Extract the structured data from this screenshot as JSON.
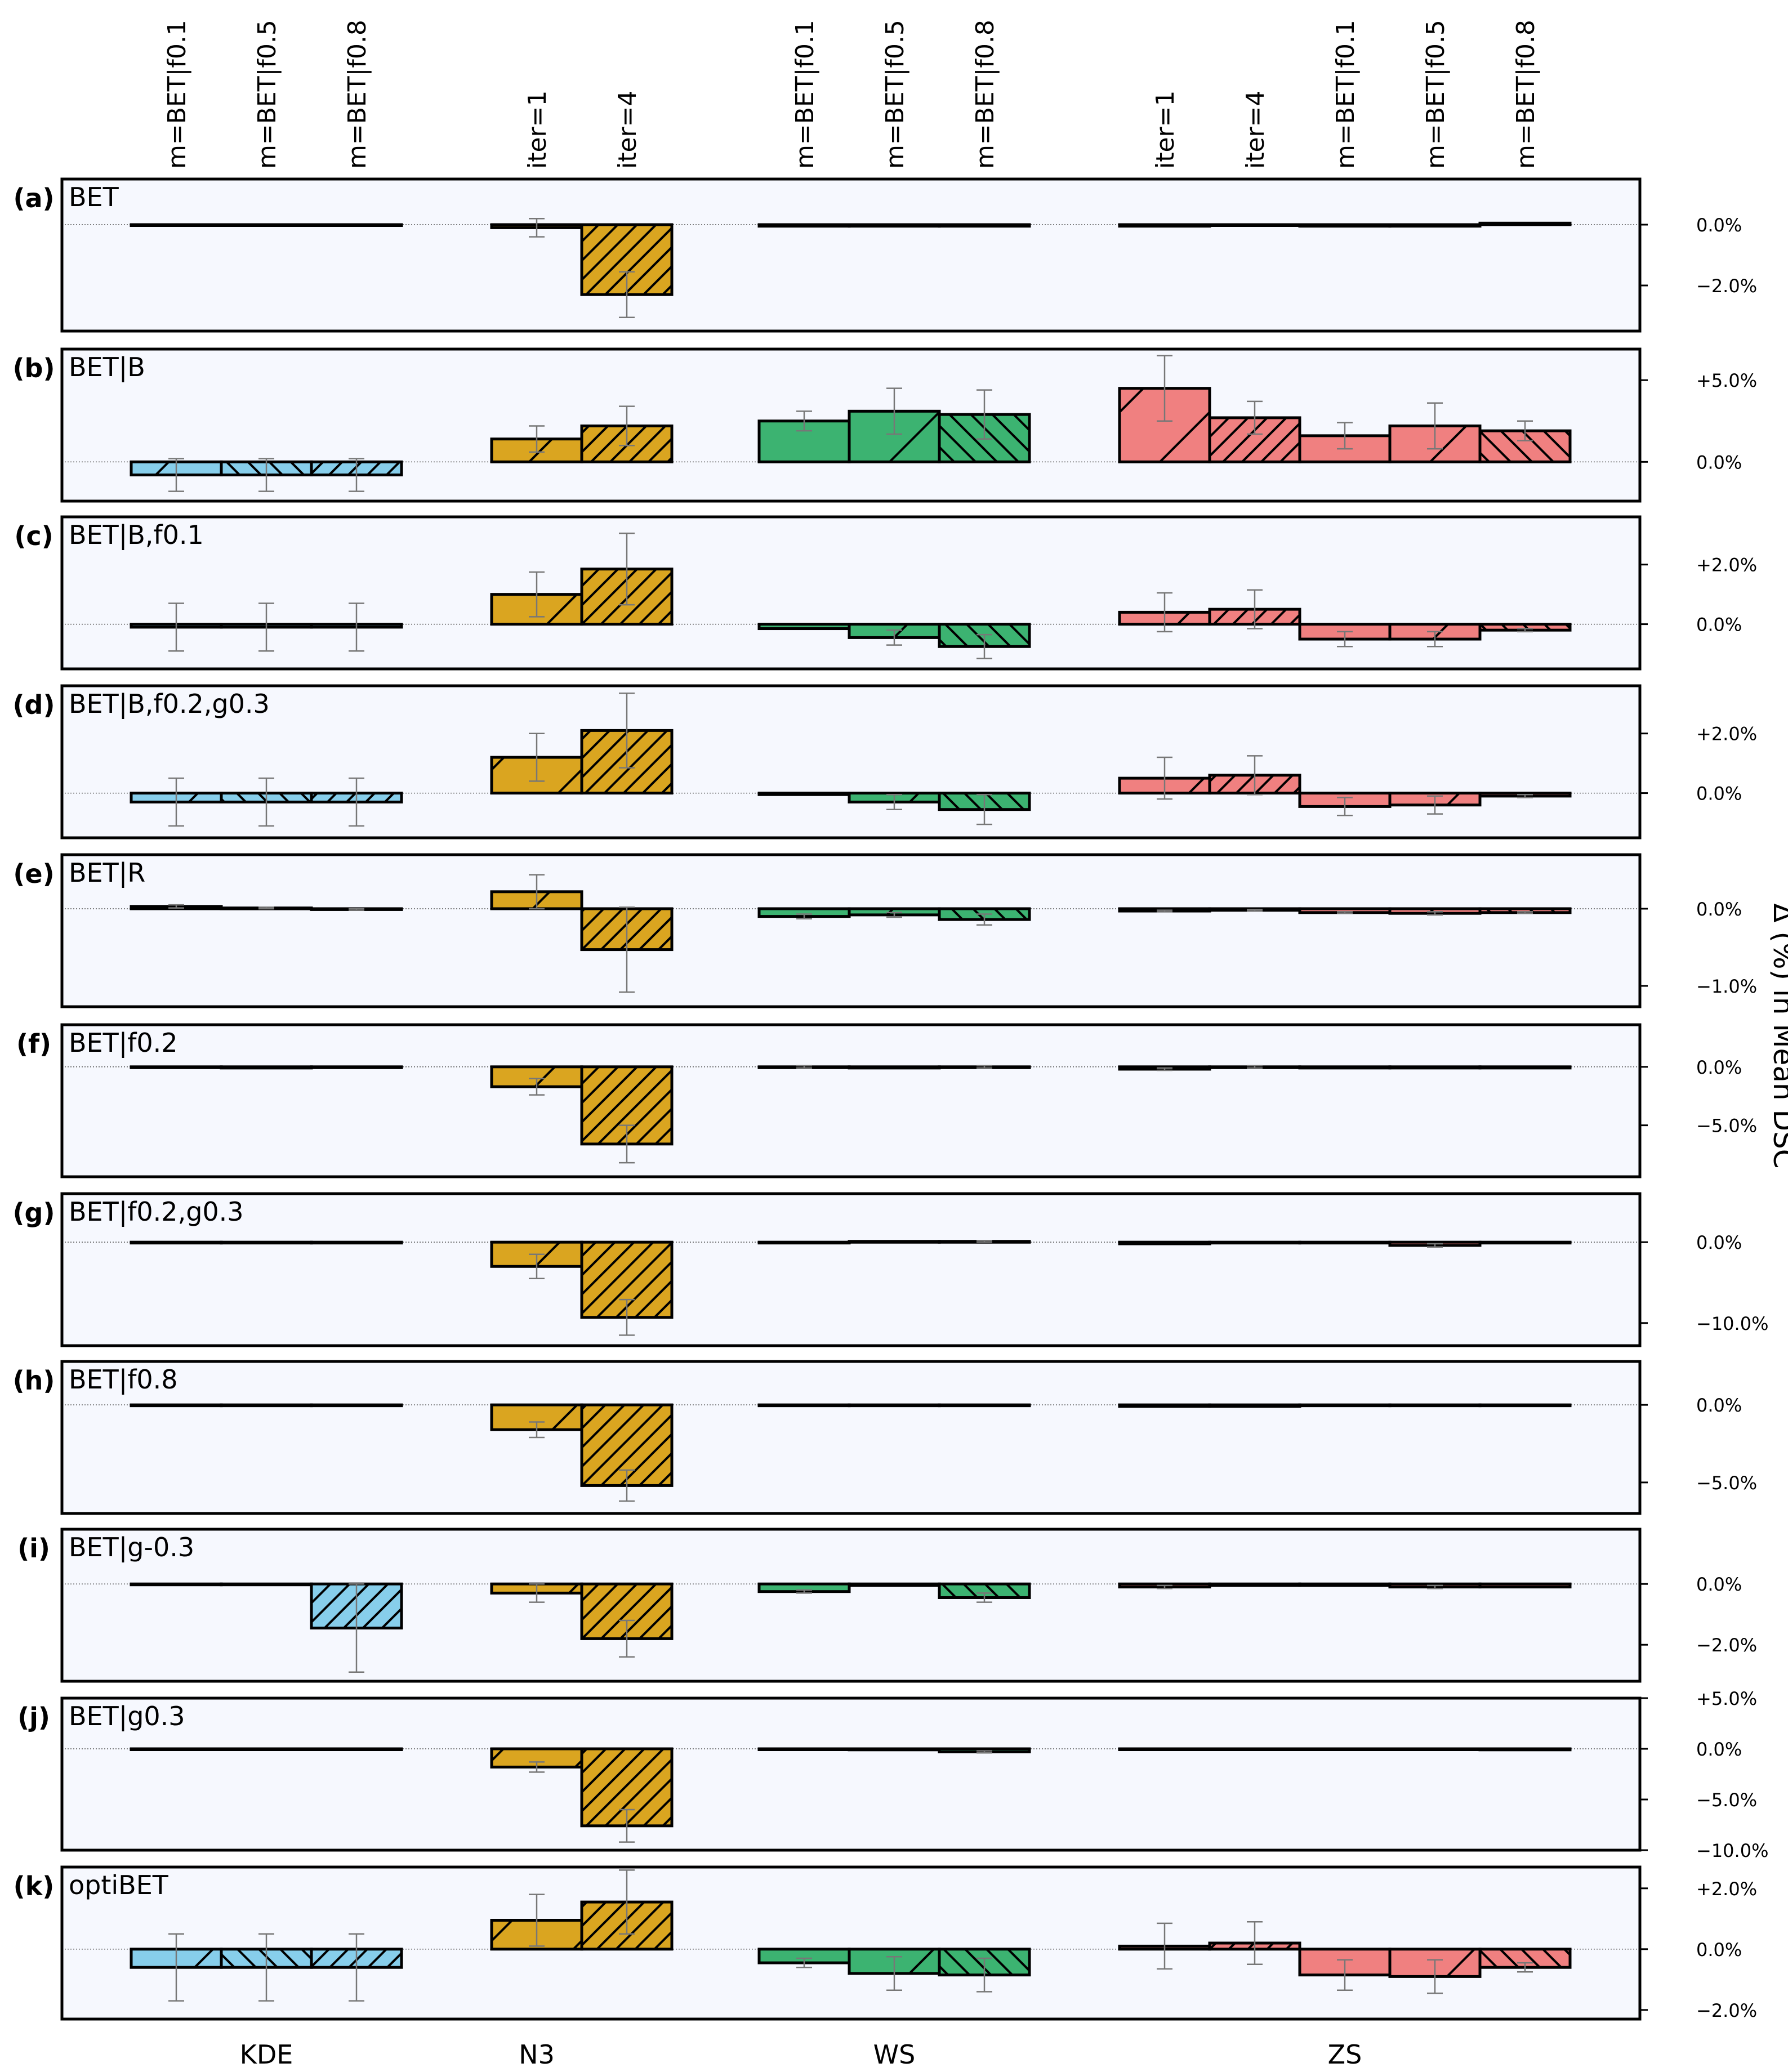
{
  "figure": {
    "ylabel": "Δ (%) in Mean DSC",
    "group_labels": [
      "KDE",
      "N3",
      "WS",
      "ZS"
    ],
    "column_labels": [
      "m=BET|f0.1",
      "m=BET|f0.5",
      "m=BET|f0.8",
      "iter=1",
      "iter=4",
      "m=BET|f0.1",
      "m=BET|f0.5",
      "m=BET|f0.8",
      "iter=1",
      "iter=4",
      "m=BET|f0.1",
      "m=BET|f0.5",
      "m=BET|f0.8"
    ],
    "colors": {
      "KDE": "#87ceeb",
      "N3": "#daa520",
      "WS": "#3cb371",
      "ZS": "#f08080",
      "panel_bg": "#f6f8fe"
    }
  },
  "chart_data": [
    {
      "type": "bar",
      "panel": "(a)",
      "title": "BET",
      "ylim": [
        -3.5,
        1.5
      ],
      "yticks": [
        0,
        -2
      ],
      "ytick_labels": [
        "0.0%",
        "−2.0%"
      ],
      "values": [
        0,
        0,
        0,
        -0.1,
        -2.3,
        -0.05,
        -0.05,
        -0.05,
        -0.05,
        0,
        -0.05,
        -0.05,
        0.05
      ],
      "errors": [
        0,
        0,
        0,
        0.3,
        0.75,
        0,
        0,
        0,
        0,
        0,
        0,
        0,
        0
      ]
    },
    {
      "type": "bar",
      "panel": "(b)",
      "title": "BET|B",
      "ylim": [
        -2.4,
        6.9
      ],
      "yticks": [
        5,
        0
      ],
      "ytick_labels": [
        "+5.0%",
        "0.0%"
      ],
      "values": [
        -0.8,
        -0.8,
        -0.8,
        1.4,
        2.2,
        2.5,
        3.1,
        2.9,
        4.5,
        2.7,
        1.6,
        2.2,
        1.9
      ],
      "errors": [
        1.0,
        1.0,
        1.0,
        0.8,
        1.2,
        0.6,
        1.4,
        1.5,
        2.0,
        1.0,
        0.8,
        1.4,
        0.6
      ]
    },
    {
      "type": "bar",
      "panel": "(c)",
      "title": "BET|B,f0.1",
      "ylim": [
        -1.5,
        3.6
      ],
      "yticks": [
        2,
        0
      ],
      "ytick_labels": [
        "+2.0%",
        "0.0%"
      ],
      "values": [
        -0.1,
        -0.1,
        -0.1,
        1.0,
        1.85,
        -0.15,
        -0.45,
        -0.75,
        0.4,
        0.5,
        -0.5,
        -0.5,
        -0.2
      ],
      "errors": [
        0.8,
        0.8,
        0.8,
        0.75,
        1.2,
        0,
        0.25,
        0.4,
        0.65,
        0.65,
        0.25,
        0.25,
        0.05
      ]
    },
    {
      "type": "bar",
      "panel": "(d)",
      "title": "BET|B,f0.2,g0.3",
      "ylim": [
        -1.5,
        3.6
      ],
      "yticks": [
        2,
        0
      ],
      "ytick_labels": [
        "+2.0%",
        "0.0%"
      ],
      "values": [
        -0.3,
        -0.3,
        -0.3,
        1.2,
        2.1,
        -0.05,
        -0.3,
        -0.55,
        0.5,
        0.6,
        -0.45,
        -0.4,
        -0.1
      ],
      "errors": [
        0.8,
        0.8,
        0.8,
        0.8,
        1.25,
        0,
        0.25,
        0.5,
        0.7,
        0.65,
        0.3,
        0.3,
        0.05
      ]
    },
    {
      "type": "bar",
      "panel": "(e)",
      "title": "BET|R",
      "ylim": [
        -1.27,
        0.7
      ],
      "yticks": [
        0,
        -1
      ],
      "ytick_labels": [
        "0.0%",
        "−1.0%"
      ],
      "values": [
        0.03,
        0.01,
        -0.01,
        0.22,
        -0.53,
        -0.1,
        -0.08,
        -0.14,
        -0.03,
        -0.02,
        -0.05,
        -0.06,
        -0.05
      ],
      "errors": [
        0.02,
        0.01,
        0.01,
        0.22,
        0.55,
        0.03,
        0.03,
        0.07,
        0.01,
        0.01,
        0.01,
        0.02,
        0.01
      ]
    },
    {
      "type": "bar",
      "panel": "(f)",
      "title": "BET|f0.2",
      "ylim": [
        -9.4,
        3.6
      ],
      "yticks": [
        0,
        -5
      ],
      "ytick_labels": [
        "0.0%",
        "−5.0%"
      ],
      "values": [
        0,
        -0.1,
        0,
        -1.7,
        -6.6,
        0,
        -0.1,
        0,
        -0.2,
        0,
        -0.1,
        -0.1,
        -0.1
      ],
      "errors": [
        0,
        0,
        0,
        0.7,
        1.6,
        0.1,
        0,
        0.1,
        0.1,
        0.1,
        0,
        0,
        0
      ]
    },
    {
      "type": "bar",
      "panel": "(g)",
      "title": "BET|f0.2,g0.3",
      "ylim": [
        -12.8,
        6.0
      ],
      "yticks": [
        0,
        -10
      ],
      "ytick_labels": [
        "0.0%",
        "−10.0%"
      ],
      "values": [
        0,
        0,
        0,
        -3.0,
        -9.3,
        -0.1,
        0.1,
        0.1,
        -0.2,
        0,
        0,
        -0.4,
        0
      ],
      "errors": [
        0,
        0,
        0,
        1.5,
        2.2,
        0,
        0,
        0.1,
        0,
        0,
        0,
        0.2,
        0
      ]
    },
    {
      "type": "bar",
      "panel": "(h)",
      "title": "BET|f0.8",
      "ylim": [
        -7.0,
        2.8
      ],
      "yticks": [
        0,
        -5
      ],
      "ytick_labels": [
        "0.0%",
        "−5.0%"
      ],
      "values": [
        0,
        0,
        0,
        -1.6,
        -5.2,
        0,
        -0.05,
        -0.05,
        -0.1,
        -0.1,
        -0.05,
        -0.05,
        -0.05
      ],
      "errors": [
        0,
        0,
        0,
        0.5,
        1.0,
        0,
        0,
        0,
        0,
        0,
        0,
        0,
        0
      ]
    },
    {
      "type": "bar",
      "panel": "(i)",
      "title": "BET|g-0.3",
      "ylim": [
        -3.2,
        1.8
      ],
      "yticks": [
        0,
        -2
      ],
      "ytick_labels": [
        "0.0%",
        "−2.0%"
      ],
      "values": [
        0,
        0,
        -1.45,
        -0.3,
        -1.8,
        -0.25,
        -0.05,
        -0.45,
        -0.1,
        -0.05,
        -0.05,
        -0.1,
        -0.1
      ],
      "errors": [
        0,
        0,
        1.45,
        0.3,
        0.6,
        0.05,
        0,
        0.15,
        0.05,
        0,
        0,
        0.05,
        0
      ]
    },
    {
      "type": "bar",
      "panel": "(j)",
      "title": "BET|g0.3",
      "ylim": [
        -10.0,
        5.0
      ],
      "yticks": [
        5,
        0,
        -5,
        -10
      ],
      "ytick_labels": [
        "+5.0%",
        "0.0%",
        "−5.0%",
        "−10.0%"
      ],
      "values": [
        0,
        0,
        0,
        -1.8,
        -7.6,
        0,
        -0.1,
        -0.3,
        0,
        0,
        0,
        0,
        -0.1
      ],
      "errors": [
        0,
        0,
        0,
        0.5,
        1.6,
        0,
        0,
        0.1,
        0,
        0,
        0,
        0,
        0
      ]
    },
    {
      "type": "bar",
      "panel": "(k)",
      "title": "optiBET",
      "ylim": [
        -2.3,
        2.7
      ],
      "yticks": [
        2,
        0,
        -2
      ],
      "ytick_labels": [
        "+2.0%",
        "0.0%",
        "−2.0%"
      ],
      "values": [
        -0.6,
        -0.6,
        -0.6,
        0.95,
        1.55,
        -0.45,
        -0.8,
        -0.85,
        0.1,
        0.2,
        -0.85,
        -0.9,
        -0.6
      ],
      "errors": [
        1.1,
        1.1,
        1.1,
        0.85,
        1.05,
        0.15,
        0.55,
        0.55,
        0.75,
        0.7,
        0.5,
        0.55,
        0.15
      ]
    }
  ]
}
